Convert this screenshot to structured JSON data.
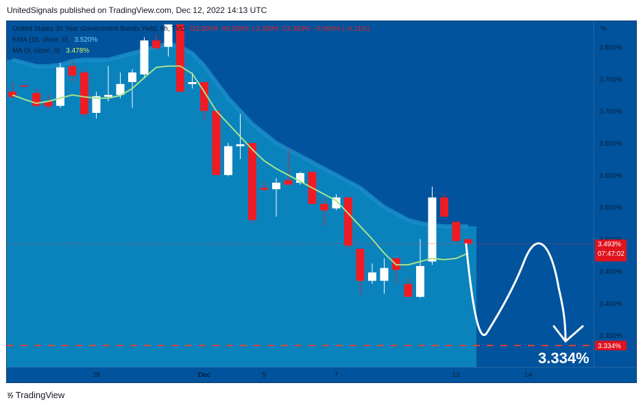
{
  "header": {
    "published_text": "UnitedSignals published on TradingView.com, Dec 12, 2022 14:13 UTC"
  },
  "legend": {
    "symbol": "United States 30 Year Government Bonds Yield, 8h, TVC",
    "ohlc": [
      "O3.500%",
      "H3.500%",
      "L3.490%",
      "C3.493%",
      "−0.004% (−0.11%)"
    ],
    "ema_label": "EMA (16, close, 0)",
    "ema_value": "3.520%",
    "ma_label": "MA (9, close, 0)",
    "ma_value": "3.478%"
  },
  "axis": {
    "unit": "%",
    "tick_labels": [
      "3.800%",
      "3.750%",
      "3.700%",
      "3.650%",
      "3.600%",
      "3.550%",
      "3.500%",
      "3.450%",
      "3.400%",
      "3.350%"
    ],
    "x_labels": [
      "28",
      "Dec",
      "5",
      "7",
      "12",
      "14"
    ]
  },
  "price_tag": {
    "value": "3.493%",
    "countdown": "07:47:02"
  },
  "target_tag": {
    "value": "3.334%"
  },
  "target_text": "3.334%",
  "footer": {
    "brand": "TradingView"
  },
  "colors": {
    "background": "#ffffff",
    "plot_bg": "#00539c",
    "band": "#0a83bd",
    "band_edge": "#1a8fcb",
    "up": "#ffffff",
    "down": "#ee1c25",
    "ma": "#a8e38a",
    "target": "#e0423c"
  },
  "chart_data": {
    "type": "candlestick",
    "ylim": [
      3.3,
      3.84
    ],
    "x_ticks": [
      {
        "label": "28",
        "index": 7
      },
      {
        "label": "Dec",
        "index": 16
      },
      {
        "label": "5",
        "index": 21
      },
      {
        "label": "7",
        "index": 27
      },
      {
        "label": "12",
        "index": 37
      },
      {
        "label": "14",
        "index": 43
      }
    ],
    "candles": [
      {
        "o": 3.73,
        "h": 3.745,
        "l": 3.72,
        "c": 3.722
      },
      {
        "o": 3.74,
        "h": 3.74,
        "l": 3.738,
        "c": 3.738
      },
      {
        "o": 3.728,
        "h": 3.735,
        "l": 3.705,
        "c": 3.708
      },
      {
        "o": 3.715,
        "h": 3.725,
        "l": 3.703,
        "c": 3.707
      },
      {
        "o": 3.708,
        "h": 3.775,
        "l": 3.705,
        "c": 3.768
      },
      {
        "o": 3.77,
        "h": 3.778,
        "l": 3.745,
        "c": 3.755
      },
      {
        "o": 3.76,
        "h": 3.765,
        "l": 3.69,
        "c": 3.695
      },
      {
        "o": 3.697,
        "h": 3.73,
        "l": 3.688,
        "c": 3.723
      },
      {
        "o": 3.722,
        "h": 3.77,
        "l": 3.715,
        "c": 3.725
      },
      {
        "o": 3.725,
        "h": 3.76,
        "l": 3.72,
        "c": 3.742
      },
      {
        "o": 3.745,
        "h": 3.765,
        "l": 3.705,
        "c": 3.76
      },
      {
        "o": 3.757,
        "h": 3.815,
        "l": 3.75,
        "c": 3.81
      },
      {
        "o": 3.81,
        "h": 3.82,
        "l": 3.795,
        "c": 3.798
      },
      {
        "o": 3.8,
        "h": 3.835,
        "l": 3.785,
        "c": 3.835
      },
      {
        "o": 3.835,
        "h": 3.835,
        "l": 3.73,
        "c": 3.73
      },
      {
        "o": 3.742,
        "h": 3.76,
        "l": 3.735,
        "c": 3.745
      },
      {
        "o": 3.745,
        "h": 3.745,
        "l": 3.685,
        "c": 3.7
      },
      {
        "o": 3.7,
        "h": 3.7,
        "l": 3.6,
        "c": 3.6
      },
      {
        "o": 3.6,
        "h": 3.65,
        "l": 3.598,
        "c": 3.645
      },
      {
        "o": 3.645,
        "h": 3.695,
        "l": 3.625,
        "c": 3.648
      },
      {
        "o": 3.65,
        "h": 3.65,
        "l": 3.525,
        "c": 3.53
      },
      {
        "o": 3.58,
        "h": 3.59,
        "l": 3.575,
        "c": 3.577
      },
      {
        "o": 3.578,
        "h": 3.595,
        "l": 3.535,
        "c": 3.588
      },
      {
        "o": 3.592,
        "h": 3.64,
        "l": 3.585,
        "c": 3.585
      },
      {
        "o": 3.588,
        "h": 3.605,
        "l": 3.585,
        "c": 3.603
      },
      {
        "o": 3.605,
        "h": 3.605,
        "l": 3.555,
        "c": 3.555
      },
      {
        "o": 3.555,
        "h": 3.565,
        "l": 3.52,
        "c": 3.545
      },
      {
        "o": 3.548,
        "h": 3.57,
        "l": 3.545,
        "c": 3.565
      },
      {
        "o": 3.565,
        "h": 3.565,
        "l": 3.485,
        "c": 3.49
      },
      {
        "o": 3.485,
        "h": 3.485,
        "l": 3.413,
        "c": 3.435
      },
      {
        "o": 3.435,
        "h": 3.462,
        "l": 3.43,
        "c": 3.448
      },
      {
        "o": 3.435,
        "h": 3.47,
        "l": 3.415,
        "c": 3.455
      },
      {
        "o": 3.47,
        "h": 3.472,
        "l": 3.43,
        "c": 3.452
      },
      {
        "o": 3.43,
        "h": 3.44,
        "l": 3.41,
        "c": 3.41
      },
      {
        "o": 3.41,
        "h": 3.5,
        "l": 3.408,
        "c": 3.458
      },
      {
        "o": 3.465,
        "h": 3.582,
        "l": 3.46,
        "c": 3.565
      },
      {
        "o": 3.565,
        "h": 3.57,
        "l": 3.535,
        "c": 3.535
      },
      {
        "o": 3.527,
        "h": 3.527,
        "l": 3.495,
        "c": 3.497
      },
      {
        "o": 3.5,
        "h": 3.5,
        "l": 3.49,
        "c": 3.493
      }
    ],
    "ma9": [
      3.725,
      3.718,
      3.712,
      3.715,
      3.72,
      3.725,
      3.722,
      3.72,
      3.72,
      3.724,
      3.735,
      3.752,
      3.768,
      3.77,
      3.77,
      3.758,
      3.73,
      3.7,
      3.68,
      3.66,
      3.64,
      3.622,
      3.61,
      3.6,
      3.59,
      3.58,
      3.57,
      3.56,
      3.54,
      3.52,
      3.5,
      3.478,
      3.46,
      3.46,
      3.465,
      3.47,
      3.468,
      3.47,
      3.478
    ],
    "ema16": [
      3.78,
      3.775,
      3.77,
      3.77,
      3.772,
      3.778,
      3.78,
      3.78,
      3.78,
      3.785,
      3.79,
      3.795,
      3.8,
      3.805,
      3.8,
      3.79,
      3.77,
      3.745,
      3.72,
      3.7,
      3.68,
      3.665,
      3.65,
      3.64,
      3.63,
      3.62,
      3.61,
      3.6,
      3.59,
      3.58,
      3.565,
      3.55,
      3.54,
      3.53,
      3.525,
      3.522,
      3.52,
      3.52,
      3.52
    ],
    "current_price": 3.493,
    "target_level": 3.334
  }
}
